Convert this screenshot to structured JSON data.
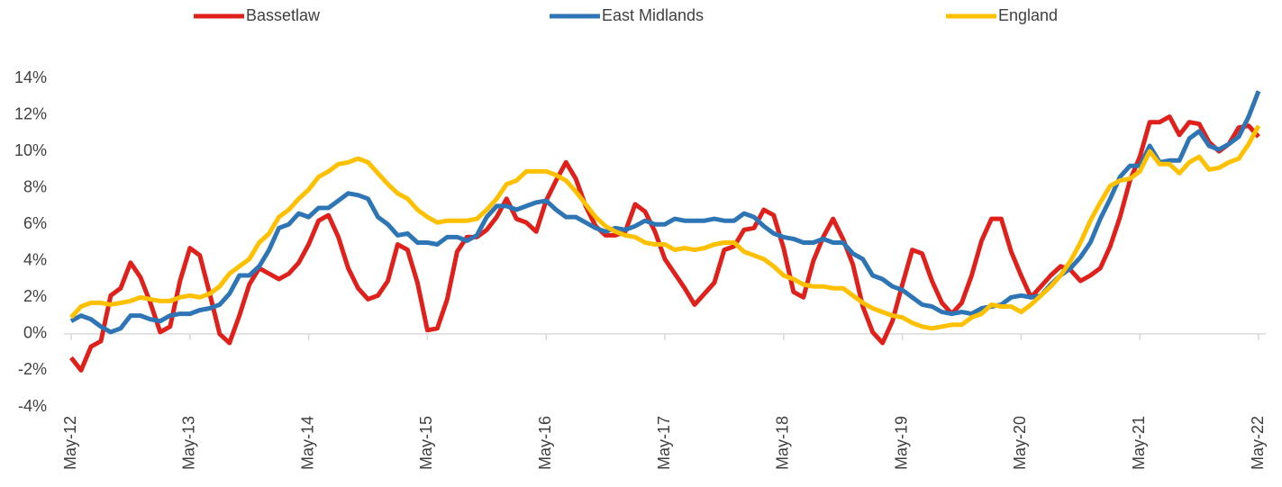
{
  "chart_data": {
    "type": "line",
    "categories": [
      "May-12",
      null,
      null,
      null,
      null,
      null,
      null,
      null,
      null,
      null,
      null,
      null,
      "May-13",
      null,
      null,
      null,
      null,
      null,
      null,
      null,
      null,
      null,
      null,
      null,
      "May-14",
      null,
      null,
      null,
      null,
      null,
      null,
      null,
      null,
      null,
      null,
      null,
      "May-15",
      null,
      null,
      null,
      null,
      null,
      null,
      null,
      null,
      null,
      null,
      null,
      "May-16",
      null,
      null,
      null,
      null,
      null,
      null,
      null,
      null,
      null,
      null,
      null,
      "May-17",
      null,
      null,
      null,
      null,
      null,
      null,
      null,
      null,
      null,
      null,
      null,
      "May-18",
      null,
      null,
      null,
      null,
      null,
      null,
      null,
      null,
      null,
      null,
      null,
      "May-19",
      null,
      null,
      null,
      null,
      null,
      null,
      null,
      null,
      null,
      null,
      null,
      "May-20",
      null,
      null,
      null,
      null,
      null,
      null,
      null,
      null,
      null,
      null,
      null,
      "May-21",
      null,
      null,
      null,
      null,
      null,
      null,
      null,
      null,
      null,
      null,
      null,
      "May-22"
    ],
    "series": [
      {
        "name": "Bassetlaw",
        "color": "#e0201b",
        "values": [
          -1.3,
          -2.0,
          -0.7,
          -0.4,
          2.1,
          2.5,
          3.9,
          3.1,
          1.7,
          0.1,
          0.4,
          2.9,
          4.7,
          4.3,
          2.2,
          0.0,
          -0.5,
          1.0,
          2.7,
          3.6,
          3.3,
          3.0,
          3.3,
          3.9,
          4.9,
          6.2,
          6.5,
          5.3,
          3.6,
          2.5,
          1.9,
          2.1,
          2.9,
          4.9,
          4.6,
          2.8,
          0.2,
          0.3,
          1.9,
          4.5,
          5.3,
          5.3,
          5.7,
          6.4,
          7.4,
          6.3,
          6.1,
          5.6,
          7.3,
          8.4,
          9.4,
          8.5,
          7.0,
          5.9,
          5.4,
          5.4,
          5.6,
          7.1,
          6.7,
          5.6,
          4.1,
          3.3,
          2.5,
          1.6,
          2.2,
          2.8,
          4.6,
          4.8,
          5.7,
          5.8,
          6.8,
          6.5,
          4.7,
          2.3,
          2.0,
          4.0,
          5.3,
          6.3,
          5.2,
          3.8,
          1.5,
          0.1,
          -0.5,
          0.7,
          2.7,
          4.6,
          4.4,
          2.9,
          1.7,
          1.1,
          1.7,
          3.2,
          5.1,
          6.3,
          6.3,
          4.5,
          3.2,
          2.0,
          2.6,
          3.2,
          3.7,
          3.5,
          2.9,
          3.2,
          3.6,
          4.8,
          6.4,
          8.4,
          9.7,
          11.6,
          11.6,
          11.9,
          10.9,
          11.6,
          11.5,
          10.5,
          10.0,
          10.4,
          11.3,
          11.4,
          10.8
        ]
      },
      {
        "name": "East Midlands",
        "color": "#2e75b6",
        "values": [
          0.7,
          1.0,
          0.8,
          0.4,
          0.1,
          0.3,
          1.0,
          1.0,
          0.8,
          0.7,
          1.0,
          1.1,
          1.1,
          1.3,
          1.4,
          1.6,
          2.2,
          3.2,
          3.2,
          3.7,
          4.6,
          5.8,
          6.0,
          6.6,
          6.4,
          6.9,
          6.9,
          7.3,
          7.7,
          7.6,
          7.4,
          6.4,
          6.0,
          5.4,
          5.5,
          5.0,
          5.0,
          4.9,
          5.3,
          5.3,
          5.1,
          5.4,
          6.4,
          7.0,
          7.0,
          6.8,
          7.0,
          7.2,
          7.3,
          6.8,
          6.4,
          6.4,
          6.1,
          5.8,
          5.6,
          5.8,
          5.7,
          5.9,
          6.2,
          6.0,
          6.0,
          6.3,
          6.2,
          6.2,
          6.2,
          6.3,
          6.2,
          6.2,
          6.6,
          6.4,
          5.9,
          5.5,
          5.3,
          5.2,
          5.0,
          5.0,
          5.2,
          5.0,
          5.0,
          4.4,
          4.1,
          3.2,
          3.0,
          2.6,
          2.4,
          2.0,
          1.6,
          1.5,
          1.2,
          1.1,
          1.2,
          1.1,
          1.4,
          1.5,
          1.6,
          2.0,
          2.1,
          2.0,
          2.1,
          2.7,
          3.2,
          3.6,
          4.2,
          5.0,
          6.3,
          7.4,
          8.6,
          9.2,
          9.2,
          10.3,
          9.4,
          9.5,
          9.5,
          10.7,
          11.1,
          10.3,
          10.1,
          10.4,
          10.8,
          11.9,
          13.3
        ]
      },
      {
        "name": "England",
        "color": "#ffc000",
        "values": [
          0.9,
          1.5,
          1.7,
          1.7,
          1.6,
          1.7,
          1.8,
          2.0,
          1.9,
          1.8,
          1.8,
          2.0,
          2.1,
          2.0,
          2.2,
          2.6,
          3.3,
          3.7,
          4.1,
          5.0,
          5.5,
          6.4,
          6.8,
          7.4,
          7.9,
          8.6,
          8.9,
          9.3,
          9.4,
          9.6,
          9.4,
          8.8,
          8.2,
          7.7,
          7.4,
          6.8,
          6.4,
          6.1,
          6.2,
          6.2,
          6.2,
          6.3,
          6.8,
          7.4,
          8.2,
          8.4,
          8.9,
          8.9,
          8.9,
          8.7,
          8.4,
          7.8,
          7.1,
          6.4,
          5.9,
          5.6,
          5.4,
          5.3,
          5.0,
          4.9,
          4.9,
          4.6,
          4.7,
          4.6,
          4.7,
          4.9,
          5.0,
          5.0,
          4.5,
          4.3,
          4.1,
          3.7,
          3.2,
          3.0,
          2.7,
          2.6,
          2.6,
          2.5,
          2.5,
          2.1,
          1.7,
          1.4,
          1.2,
          1.0,
          0.9,
          0.6,
          0.4,
          0.3,
          0.4,
          0.5,
          0.5,
          0.9,
          1.1,
          1.6,
          1.5,
          1.5,
          1.2,
          1.6,
          2.1,
          2.6,
          3.2,
          4.0,
          5.0,
          6.2,
          7.2,
          8.1,
          8.4,
          8.5,
          8.9,
          10.0,
          9.3,
          9.3,
          8.8,
          9.4,
          9.7,
          9.0,
          9.1,
          9.4,
          9.6,
          10.4,
          11.4
        ]
      }
    ],
    "ylim": [
      -4,
      14
    ],
    "yticks": [
      {
        "value": -4,
        "label": "-4%"
      },
      {
        "value": -2,
        "label": "-2%"
      },
      {
        "value": 0,
        "label": "0%"
      },
      {
        "value": 2,
        "label": "2%"
      },
      {
        "value": 4,
        "label": "4%"
      },
      {
        "value": 6,
        "label": "6%"
      },
      {
        "value": 8,
        "label": "8%"
      },
      {
        "value": 10,
        "label": "10%"
      },
      {
        "value": 12,
        "label": "12%"
      },
      {
        "value": 14,
        "label": "14%"
      }
    ],
    "grid": false,
    "legend": "top"
  }
}
